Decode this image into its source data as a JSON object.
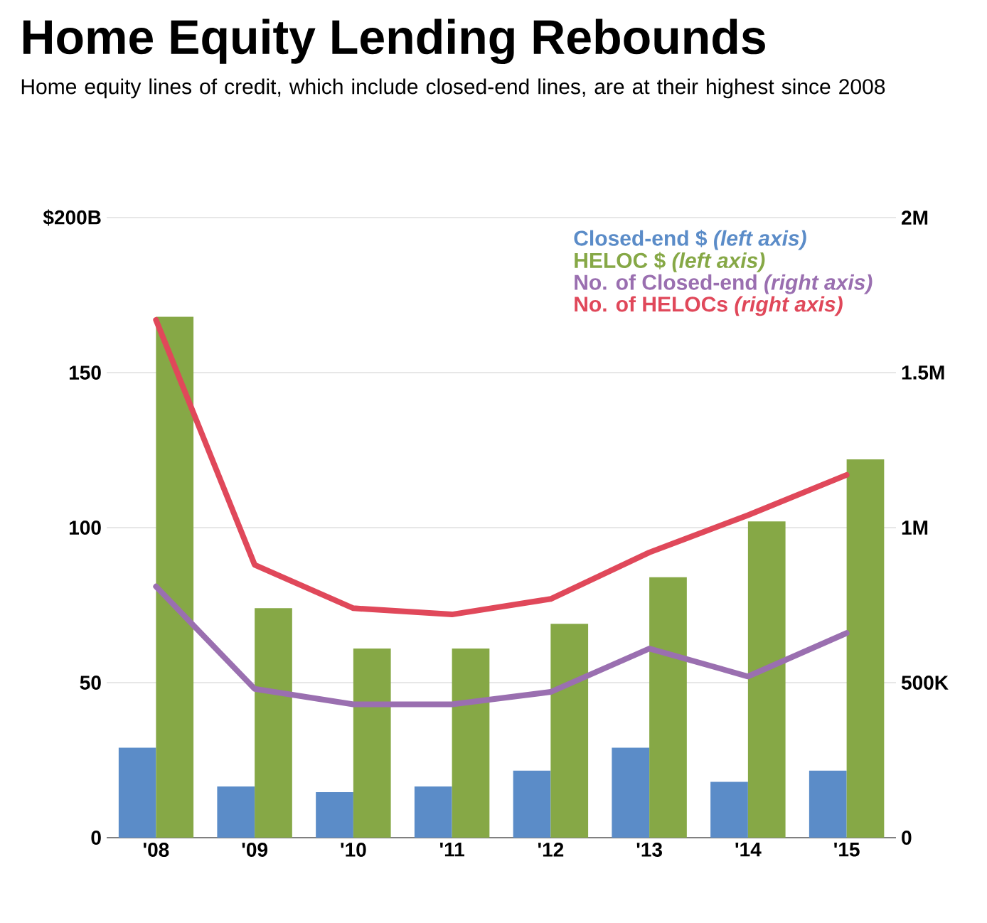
{
  "chart_data": {
    "type": "bar",
    "title": "Home Equity Lending Rebounds",
    "subtitle": "Home equity lines of credit, which include closed-end lines, are at their highest since 2008",
    "categories": [
      "'08",
      "'09",
      "'10",
      "'11",
      "'12",
      "'13",
      "'14",
      "'15"
    ],
    "series": [
      {
        "name": "Closed-end $ *(left axis)*",
        "color": "#5b8cc8",
        "values": [
          29,
          16.5,
          14.7,
          16.5,
          21.6,
          29,
          18,
          21.6
        ]
      },
      {
        "name": "HELOC $ *(left axis)*",
        "color": "#86a846",
        "values": [
          168,
          74,
          61,
          61,
          69,
          84,
          102,
          122
        ]
      },
      {
        "name": "No. of Closed-end *(right axis)*",
        "type": "line",
        "axis": "y2",
        "color": "#9a6fb0",
        "values": [
          810000,
          480000,
          430000,
          430000,
          470000,
          610000,
          520000,
          660000
        ]
      },
      {
        "name": "No. of HELOCs *(right axis)*",
        "type": "line",
        "axis": "y2",
        "color": "#e0485a",
        "values": [
          1670000,
          880000,
          740000,
          720000,
          770000,
          920000,
          1040000,
          1170000
        ]
      }
    ],
    "ylim": [
      0,
      200
    ],
    "yticks": [
      0,
      50,
      100,
      150,
      {
        "value": 200,
        "label": "$200B"
      }
    ],
    "y2lim": [
      0,
      2000000
    ],
    "y2ticks": [
      0,
      {
        "value": 500000,
        "label": "500K"
      },
      {
        "value": 1000000,
        "label": "1M"
      },
      {
        "value": 1500000,
        "label": "1.5M"
      },
      {
        "value": 2000000,
        "label": "2M"
      }
    ],
    "grid": "y",
    "legend": "top right"
  }
}
